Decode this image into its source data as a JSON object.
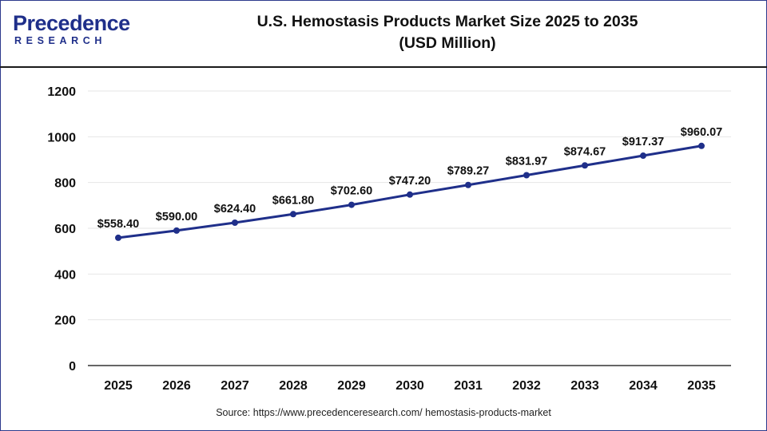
{
  "brand": {
    "name": "Precedence",
    "tagline": "RESEARCH"
  },
  "title": {
    "line1": "U.S. Hemostasis Products Market Size 2025 to 2035",
    "line2": "(USD Million)"
  },
  "source": "Source: https://www.precedenceresearch.com/ hemostasis-products-market",
  "colors": {
    "line": "#1f2f8a",
    "grid": "#e6e6e6",
    "axis": "#333333"
  },
  "chart_data": {
    "type": "line",
    "title": "U.S. Hemostasis Products Market Size 2025 to 2035 (USD Million)",
    "xlabel": "",
    "ylabel": "",
    "categories": [
      "2025",
      "2026",
      "2027",
      "2028",
      "2029",
      "2030",
      "2031",
      "2032",
      "2033",
      "2034",
      "2035"
    ],
    "series": [
      {
        "values": [
          558.4,
          590.0,
          624.4,
          661.8,
          702.6,
          747.2,
          789.27,
          831.97,
          874.67,
          917.37,
          960.07
        ],
        "labels": [
          "$558.40",
          "$590.00",
          "$624.40",
          "$661.80",
          "$702.60",
          "$747.20",
          "$789.27",
          "$831.97",
          "$874.67",
          "$917.37",
          "$960.07"
        ]
      }
    ],
    "ylim": [
      0,
      1200
    ],
    "yticks": [
      0,
      200,
      400,
      600,
      800,
      1000,
      1200
    ],
    "grid": true,
    "legend": "none"
  }
}
